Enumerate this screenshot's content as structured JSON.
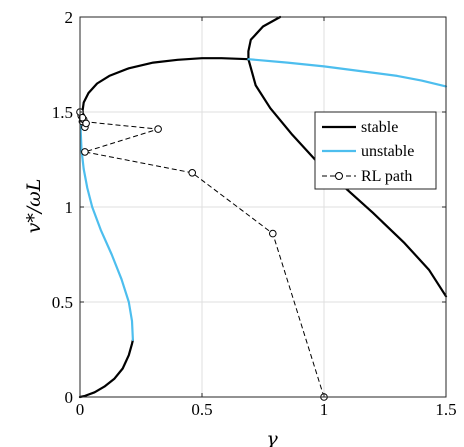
{
  "chart_data": {
    "type": "line",
    "xlabel": "γ",
    "ylabel": "v*/ωL",
    "xlim": [
      0,
      1.5
    ],
    "ylim": [
      0,
      2
    ],
    "grid": true,
    "legend_position": "top-right",
    "x_ticks": [
      "0",
      "0.5",
      "1",
      "1.5"
    ],
    "y_ticks": [
      "0",
      "0.5",
      "1",
      "1.5",
      "2"
    ],
    "legend": [
      {
        "label": "stable",
        "color": "#000000",
        "style": "solid"
      },
      {
        "label": "unstable",
        "color": "#4DBEEE",
        "style": "solid"
      },
      {
        "label": "RL path",
        "color": "#000000",
        "style": "dashed-circle"
      }
    ],
    "series": [
      {
        "legend": "stable",
        "color": "#000000",
        "width": 2.2,
        "segments": [
          [
            [
              0,
              0
            ],
            [
              0.02,
              0.006
            ],
            [
              0.06,
              0.025
            ],
            [
              0.1,
              0.055
            ],
            [
              0.14,
              0.095
            ],
            [
              0.175,
              0.15
            ],
            [
              0.2,
              0.22
            ],
            [
              0.213,
              0.28
            ],
            [
              0.217,
              0.3
            ]
          ],
          [
            [
              0.01,
              1.5
            ],
            [
              0.015,
              1.55
            ],
            [
              0.035,
              1.6
            ],
            [
              0.07,
              1.65
            ],
            [
              0.12,
              1.69
            ],
            [
              0.2,
              1.73
            ],
            [
              0.3,
              1.76
            ],
            [
              0.4,
              1.775
            ],
            [
              0.5,
              1.783
            ],
            [
              0.58,
              1.783
            ],
            [
              0.65,
              1.78
            ],
            [
              0.69,
              1.778
            ]
          ],
          [
            [
              0.82,
              2.0
            ],
            [
              0.75,
              1.95
            ],
            [
              0.7,
              1.88
            ],
            [
              0.69,
              1.82
            ],
            [
              0.69,
              1.778
            ],
            [
              0.72,
              1.64
            ],
            [
              0.78,
              1.52
            ],
            [
              0.87,
              1.38
            ],
            [
              0.97,
              1.24
            ],
            [
              1.07,
              1.12
            ],
            [
              1.2,
              0.97
            ],
            [
              1.33,
              0.81
            ],
            [
              1.43,
              0.67
            ],
            [
              1.5,
              0.53
            ]
          ]
        ]
      },
      {
        "legend": "unstable",
        "color": "#4DBEEE",
        "width": 2.2,
        "segments": [
          [
            [
              0.217,
              0.3
            ],
            [
              0.213,
              0.4
            ],
            [
              0.2,
              0.5
            ],
            [
              0.17,
              0.62
            ],
            [
              0.13,
              0.75
            ],
            [
              0.085,
              0.88
            ],
            [
              0.05,
              1.0
            ],
            [
              0.03,
              1.1
            ],
            [
              0.015,
              1.2
            ],
            [
              0.006,
              1.3
            ],
            [
              0.003,
              1.4
            ],
            [
              0.005,
              1.45
            ],
            [
              0.01,
              1.5
            ]
          ],
          [
            [
              0.69,
              1.778
            ],
            [
              0.85,
              1.76
            ],
            [
              1.0,
              1.74
            ],
            [
              1.15,
              1.715
            ],
            [
              1.3,
              1.69
            ],
            [
              1.4,
              1.665
            ],
            [
              1.5,
              1.635
            ]
          ]
        ]
      }
    ],
    "rl_path": {
      "legend": "RL path",
      "points": [
        [
          1.0,
          0.0
        ],
        [
          0.79,
          0.86
        ],
        [
          0.46,
          1.18
        ],
        [
          0.02,
          1.29
        ],
        [
          0.32,
          1.41
        ],
        [
          0.01,
          1.45
        ],
        [
          0.02,
          1.42
        ],
        [
          0.005,
          1.48
        ],
        [
          0.015,
          1.46
        ],
        [
          0.0,
          1.5
        ],
        [
          0.01,
          1.47
        ],
        [
          0.025,
          1.44
        ]
      ]
    }
  }
}
